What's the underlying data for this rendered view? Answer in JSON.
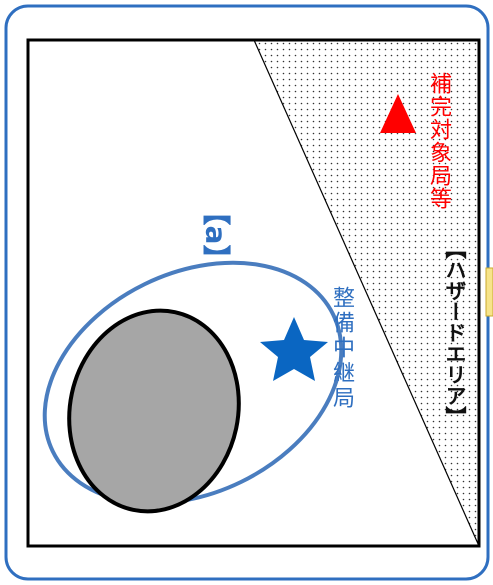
{
  "labels": {
    "hazard_area": "【ハザードエリア】",
    "target_station": "補完対象局等",
    "relay_station": "整備中継局",
    "area_tag": "【a】"
  },
  "colors": {
    "frame": "#2f6fc0",
    "hazard_fill": "#ffffff",
    "hazard_dots": "#333333",
    "target": "#ff0000",
    "relay_star": "#0a66c2",
    "relay_ellipse": "#4a7dbf",
    "obstacle_fill": "#a6a6a6",
    "side_tab": "#f7e48a"
  },
  "icons": {
    "target_station": "triangle-icon",
    "relay_station": "star-icon"
  }
}
